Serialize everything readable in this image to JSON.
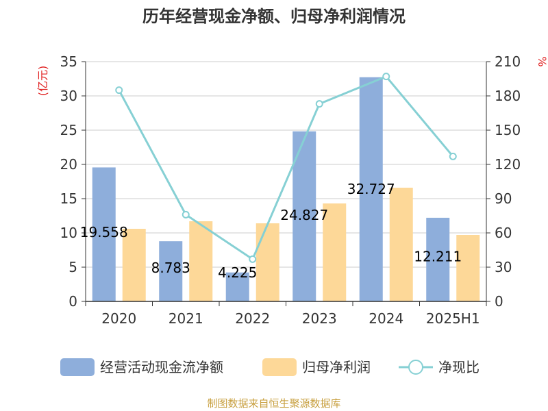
{
  "chart_data": {
    "type": "bar",
    "title": "历年经营现金净额、归母净利润情况",
    "y_left_unit": "(亿元)",
    "y_right_unit": "%",
    "ylim_left": [
      0,
      35
    ],
    "ylim_right": [
      0,
      210
    ],
    "yticks_left": [
      "0",
      "5",
      "10",
      "15",
      "20",
      "25",
      "30",
      "35"
    ],
    "yticks_right": [
      "0",
      "30",
      "60",
      "90",
      "120",
      "150",
      "180",
      "210"
    ],
    "categories": [
      "2020",
      "2021",
      "2022",
      "2023",
      "2024",
      "2025H1"
    ],
    "series": [
      {
        "name": "经营活动现金流净额",
        "type": "bar",
        "axis": "left",
        "color": "#8eaedb",
        "values": [
          19.558,
          8.783,
          4.225,
          24.827,
          32.727,
          12.211
        ],
        "labels": [
          "19.558",
          "8.783",
          "4.225",
          "24.827",
          "32.727",
          "12.211"
        ]
      },
      {
        "name": "归母净利润",
        "type": "bar",
        "axis": "left",
        "color": "#fdd898",
        "values": [
          10.6,
          11.7,
          11.4,
          14.3,
          16.6,
          9.7
        ]
      },
      {
        "name": "净现比",
        "type": "line",
        "axis": "right",
        "color": "#86d0d4",
        "values": [
          185,
          76,
          37,
          173,
          197,
          127
        ]
      }
    ],
    "legend_position": "bottom",
    "grid": true
  },
  "source": "制图数据来自恒生聚源数据库"
}
